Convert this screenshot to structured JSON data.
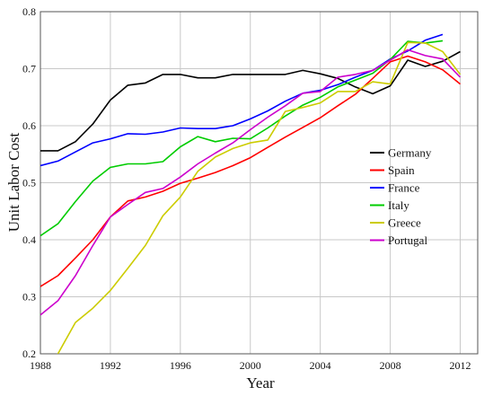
{
  "chart_data": {
    "type": "line",
    "title": "",
    "xlabel": "Year",
    "ylabel": "Unit Labor Cost",
    "xlim": [
      1988,
      2013
    ],
    "ylim": [
      0.2,
      0.8
    ],
    "grid": true,
    "legend_position": "right-middle",
    "x_ticks": [
      1988,
      1992,
      1996,
      2000,
      2004,
      2008,
      2012
    ],
    "x_tick_labels": [
      "1988",
      "1992",
      "1996",
      "2000",
      "2004",
      "2008",
      "2012"
    ],
    "y_ticks": [
      0.2,
      0.3,
      0.4,
      0.5,
      0.6,
      0.7,
      0.8
    ],
    "y_tick_labels": [
      "0.2",
      "0.3",
      "0.4",
      "0.5",
      "0.6",
      "0.7",
      "0.8"
    ],
    "series": [
      {
        "name": "Germany",
        "color": "#000000",
        "x": [
          1988,
          1989,
          1990,
          1991,
          1992,
          1993,
          1994,
          1995,
          1996,
          1997,
          1998,
          1999,
          2000,
          2001,
          2002,
          2003,
          2004,
          2005,
          2006,
          2007,
          2008,
          2009,
          2010,
          2011,
          2012
        ],
        "values": [
          0.556,
          0.556,
          0.572,
          0.603,
          0.645,
          0.671,
          0.675,
          0.69,
          0.69,
          0.684,
          0.684,
          0.69,
          0.69,
          0.69,
          0.69,
          0.697,
          0.691,
          0.683,
          0.668,
          0.656,
          0.67,
          0.715,
          0.704,
          0.713,
          0.73
        ]
      },
      {
        "name": "Spain",
        "color": "#ff0000",
        "x": [
          1988,
          1989,
          1990,
          1991,
          1992,
          1993,
          1994,
          1995,
          1996,
          1997,
          1998,
          1999,
          2000,
          2001,
          2002,
          2003,
          2004,
          2005,
          2006,
          2007,
          2008,
          2009,
          2010,
          2011,
          2012
        ],
        "values": [
          0.318,
          0.337,
          0.368,
          0.4,
          0.44,
          0.468,
          0.475,
          0.485,
          0.499,
          0.508,
          0.518,
          0.53,
          0.544,
          0.562,
          0.58,
          0.597,
          0.614,
          0.635,
          0.655,
          0.683,
          0.712,
          0.722,
          0.712,
          0.698,
          0.673
        ]
      },
      {
        "name": "France",
        "color": "#0000ff",
        "x": [
          1988,
          1989,
          1990,
          1991,
          1992,
          1993,
          1994,
          1995,
          1996,
          1997,
          1998,
          1999,
          2000,
          2001,
          2002,
          2003,
          2004,
          2005,
          2006,
          2007,
          2008,
          2009,
          2010,
          2011
        ],
        "values": [
          0.53,
          0.538,
          0.554,
          0.57,
          0.577,
          0.586,
          0.585,
          0.589,
          0.596,
          0.595,
          0.595,
          0.6,
          0.612,
          0.626,
          0.643,
          0.657,
          0.662,
          0.672,
          0.685,
          0.697,
          0.717,
          0.731,
          0.75,
          0.76
        ]
      },
      {
        "name": "Italy",
        "color": "#00cc00",
        "x": [
          1988,
          1989,
          1990,
          1991,
          1992,
          1993,
          1994,
          1995,
          1996,
          1997,
          1998,
          1999,
          2000,
          2001,
          2002,
          2003,
          2004,
          2005,
          2006,
          2007,
          2008,
          2009,
          2010,
          2011
        ],
        "values": [
          0.407,
          0.428,
          0.467,
          0.503,
          0.527,
          0.533,
          0.533,
          0.537,
          0.563,
          0.581,
          0.572,
          0.578,
          0.577,
          0.596,
          0.617,
          0.636,
          0.65,
          0.668,
          0.68,
          0.692,
          0.716,
          0.748,
          0.745,
          0.749
        ]
      },
      {
        "name": "Greece",
        "color": "#cccc00",
        "x": [
          1989,
          1990,
          1991,
          1992,
          1993,
          1994,
          1995,
          1996,
          1997,
          1998,
          1999,
          2000,
          2001,
          2002,
          2003,
          2004,
          2005,
          2006,
          2007,
          2008,
          2009,
          2010,
          2011,
          2012
        ],
        "values": [
          0.2,
          0.255,
          0.28,
          0.311,
          0.35,
          0.39,
          0.442,
          0.475,
          0.52,
          0.545,
          0.56,
          0.57,
          0.575,
          0.625,
          0.632,
          0.64,
          0.66,
          0.66,
          0.677,
          0.673,
          0.746,
          0.745,
          0.73,
          0.69
        ]
      },
      {
        "name": "Portugal",
        "color": "#cc00cc",
        "x": [
          1988,
          1989,
          1990,
          1991,
          1992,
          1993,
          1994,
          1995,
          1996,
          1997,
          1998,
          1999,
          2000,
          2001,
          2002,
          2003,
          2004,
          2005,
          2006,
          2007,
          2008,
          2009,
          2010,
          2011,
          2012
        ],
        "values": [
          0.268,
          0.293,
          0.337,
          0.39,
          0.44,
          0.462,
          0.483,
          0.49,
          0.51,
          0.533,
          0.552,
          0.57,
          0.593,
          0.615,
          0.635,
          0.657,
          0.66,
          0.685,
          0.69,
          0.697,
          0.715,
          0.733,
          0.723,
          0.717,
          0.685
        ]
      }
    ]
  }
}
